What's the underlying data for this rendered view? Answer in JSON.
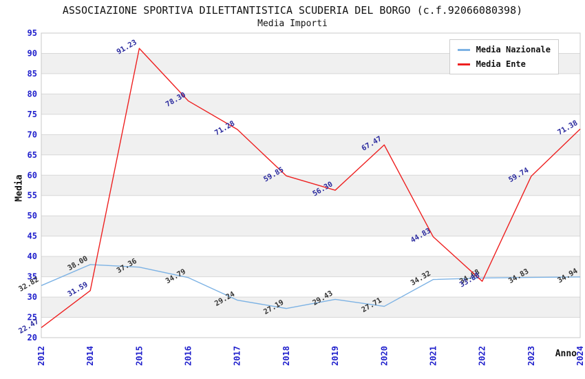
{
  "chart_data": {
    "type": "line",
    "title": "ASSOCIAZIONE SPORTIVA DILETTANTISTICA SCUDERIA DEL BORGO (c.f.92066080398)",
    "subtitle": "Media Importi",
    "xlabel": "Anno",
    "ylabel": "Media",
    "categories": [
      "2012",
      "2014",
      "2015",
      "2016",
      "2017",
      "2018",
      "2019",
      "2020",
      "2021",
      "2022",
      "2023",
      "2024"
    ],
    "series": [
      {
        "name": "Media Nazionale",
        "color": "#7cb2e4",
        "label_color": "#333333",
        "values": [
          32.82,
          38.0,
          37.36,
          34.79,
          29.24,
          27.19,
          29.43,
          27.71,
          34.32,
          34.68,
          34.83,
          34.94
        ]
      },
      {
        "name": "Media Ente",
        "color": "#ee2020",
        "label_color": "#2a2a9e",
        "values": [
          22.47,
          31.59,
          91.23,
          78.3,
          71.28,
          59.85,
          56.3,
          67.47,
          44.83,
          33.88,
          59.74,
          71.38
        ]
      }
    ],
    "ylim": [
      20,
      95
    ],
    "ytick_step": 5,
    "grid": true,
    "legend_position": "top-right",
    "colors": {
      "axis_ticks": "#2020cc",
      "band": "#ffffff",
      "band_alt": "#f0f0f0",
      "gridline": "#d8d8d8",
      "plot_border": "#c8c8c8",
      "axis_title": "#111111"
    }
  }
}
